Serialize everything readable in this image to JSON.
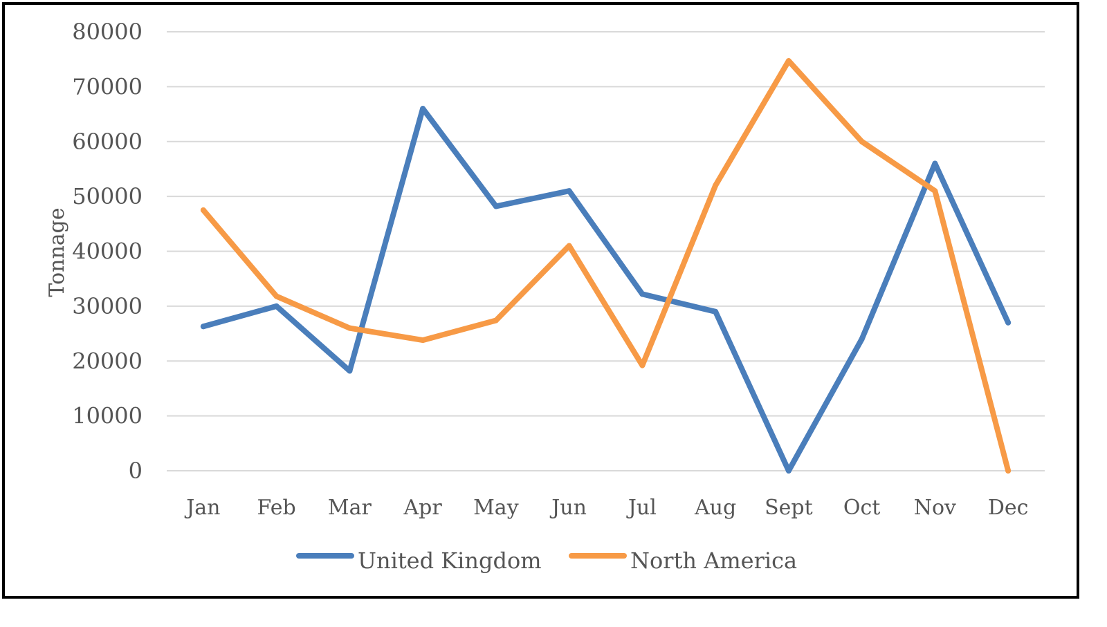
{
  "chart_data": {
    "type": "line",
    "title": "",
    "xlabel": "",
    "ylabel": "Tonnage",
    "categories": [
      "Jan",
      "Feb",
      "Mar",
      "Apr",
      "May",
      "Jun",
      "Jul",
      "Aug",
      "Sept",
      "Oct",
      "Nov",
      "Dec"
    ],
    "ylim": [
      0,
      80000
    ],
    "yticks": [
      "0",
      "10000",
      "20000",
      "30000",
      "40000",
      "50000",
      "60000",
      "70000",
      "80000"
    ],
    "grid": "horizontal",
    "legend_position": "bottom",
    "series": [
      {
        "name": "United Kingdom",
        "color": "#4a7ebb",
        "values": [
          26300,
          30000,
          18200,
          66000,
          48200,
          51000,
          32200,
          29000,
          0,
          24000,
          56000,
          27000
        ]
      },
      {
        "name": "North America",
        "color": "#f79a46",
        "values": [
          47500,
          31800,
          26000,
          23800,
          27400,
          41000,
          19200,
          52000,
          74700,
          60000,
          51000,
          0
        ]
      }
    ]
  }
}
